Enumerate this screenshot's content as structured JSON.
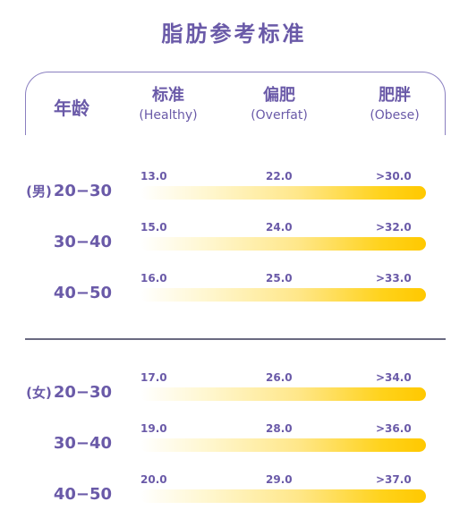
{
  "title": "脂肪参考标准",
  "headers": {
    "age": "年龄",
    "healthy_zh": "标准",
    "healthy_en": "(Healthy)",
    "overfat_zh": "偏肥",
    "overfat_en": "(Overfat)",
    "obese_zh": "肥胖",
    "obese_en": "(Obese)"
  },
  "colors": {
    "text": "#6a5aa8",
    "bar_end": "#ffc800",
    "frame": "#8a7fc0"
  },
  "chart_data": {
    "type": "table",
    "title": "脂肪参考标准",
    "columns": [
      "年龄",
      "标准 (Healthy)",
      "偏肥 (Overfat)",
      "肥胖 (Obese)"
    ],
    "groups": [
      {
        "sex": "(男)",
        "rows": [
          {
            "age": "20-30",
            "healthy": "13.0",
            "overfat": "22.0",
            "obese": ">30.0"
          },
          {
            "age": "30-40",
            "healthy": "15.0",
            "overfat": "24.0",
            "obese": ">32.0"
          },
          {
            "age": "40-50",
            "healthy": "16.0",
            "overfat": "25.0",
            "obese": ">33.0"
          }
        ]
      },
      {
        "sex": "(女)",
        "rows": [
          {
            "age": "20-30",
            "healthy": "17.0",
            "overfat": "26.0",
            "obese": ">34.0"
          },
          {
            "age": "30-40",
            "healthy": "19.0",
            "overfat": "28.0",
            "obese": ">36.0"
          },
          {
            "age": "40-50",
            "healthy": "20.0",
            "overfat": "29.0",
            "obese": ">37.0"
          }
        ]
      }
    ]
  }
}
